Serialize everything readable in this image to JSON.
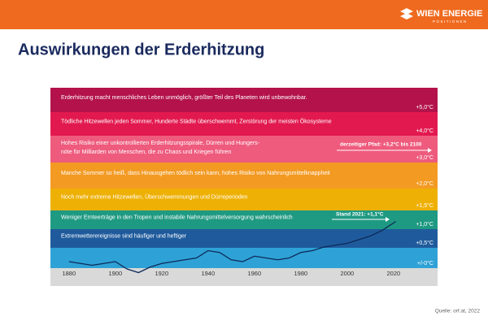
{
  "header": {
    "brand": "WIEN ENERGIE",
    "sub": "POSITIONEN"
  },
  "title": "Auswirkungen der Erderhitzung",
  "bands": [
    {
      "text": [
        "Erderhitzung macht menschliches Leben unmöglich, größter Teil des Planeten wird unbewohnbar."
      ],
      "label": "+5,0°C",
      "color": "#b3124a"
    },
    {
      "text": [
        "Tödliche Hitzewellen jeden Sommer, Hunderte Städte überschwemmt, Zerstörung der meisten Ökosysteme"
      ],
      "label": "+4,0°C",
      "color": "#e2194f"
    },
    {
      "text": [
        "Hohes Risiko einer unkontrollierten Erderhitzungsspirale, Dürren und Hungers-",
        "nöte für Milliarden von Menschen, die zu Chaos und Kriegen führen"
      ],
      "label": "+3,0°C",
      "color": "#ee5b7d"
    },
    {
      "text": [
        "Manche Sommer so heiß, dass Hinausgehen tödlich sein kann, hohes Risiko von Nahrungsmittelknappheit"
      ],
      "label": "+2,0°C",
      "color": "#f39a23"
    },
    {
      "text": [
        "Noch mehr extreme Hitzewellen, Überschwemmungen und Dürreperioden"
      ],
      "label": "+1,5°C",
      "color": "#eeb004"
    },
    {
      "text": [
        "Weniger Ernteerträge in den Tropen und instabile Nahrungsmittelversorgung wahrscheinlich"
      ],
      "label": "+1,0°C",
      "color": "#1f9a82"
    },
    {
      "text": [
        "Extremwetterereignisse sind häufiger und heftiger"
      ],
      "label": "+0,5°C",
      "color": "#1f5b9c"
    },
    {
      "text": [],
      "label": "+/-0°C",
      "color": "#2ea2d6"
    }
  ],
  "annotations": [
    "derzeitiger Pfad: +3,2°C bis 2100",
    "Stand 2021: +1,1°C"
  ],
  "chart_data": {
    "type": "line",
    "color": "#0d2a5a",
    "x": [
      1880,
      1885,
      1890,
      1895,
      1900,
      1905,
      1910,
      1915,
      1920,
      1925,
      1930,
      1935,
      1940,
      1945,
      1950,
      1955,
      1960,
      1965,
      1970,
      1975,
      1980,
      1985,
      1990,
      1995,
      2000,
      2005,
      2010,
      2015,
      2021
    ],
    "values": [
      0.0,
      -0.05,
      -0.1,
      -0.05,
      0.0,
      -0.2,
      -0.3,
      -0.15,
      -0.05,
      0.0,
      0.05,
      0.1,
      0.3,
      0.25,
      0.05,
      0.0,
      0.15,
      0.1,
      0.05,
      0.1,
      0.25,
      0.3,
      0.4,
      0.45,
      0.5,
      0.6,
      0.7,
      0.85,
      1.1
    ],
    "xlim": [
      1872,
      2039
    ],
    "ylim": [
      -0.4,
      1.2
    ],
    "xticks": [
      1880,
      1900,
      1920,
      1940,
      1960,
      1980,
      2000,
      2020
    ]
  },
  "source": "Quelle: orf.at, 2022"
}
